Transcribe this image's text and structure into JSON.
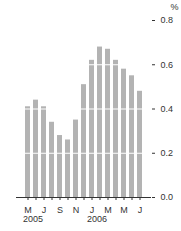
{
  "chart_data": {
    "type": "bar",
    "categories": [
      "M",
      null,
      "J",
      null,
      "S",
      null,
      "N",
      null,
      "J",
      null,
      "M",
      null,
      "M",
      null,
      "J"
    ],
    "values": [
      0.41,
      0.44,
      0.41,
      0.34,
      0.28,
      0.26,
      0.35,
      0.51,
      0.62,
      0.68,
      0.67,
      0.62,
      0.58,
      0.55,
      0.48
    ],
    "x_groups": [
      {
        "label": "2005",
        "start": 0,
        "end": 7
      },
      {
        "label": "2006",
        "start": 8,
        "end": 14
      }
    ],
    "y_label": "%",
    "color": "#b3b3b3",
    "ylim": [
      0,
      0.8
    ],
    "yticks": [
      0,
      0.2,
      0.4,
      0.6,
      0.8
    ],
    "grid": true
  }
}
